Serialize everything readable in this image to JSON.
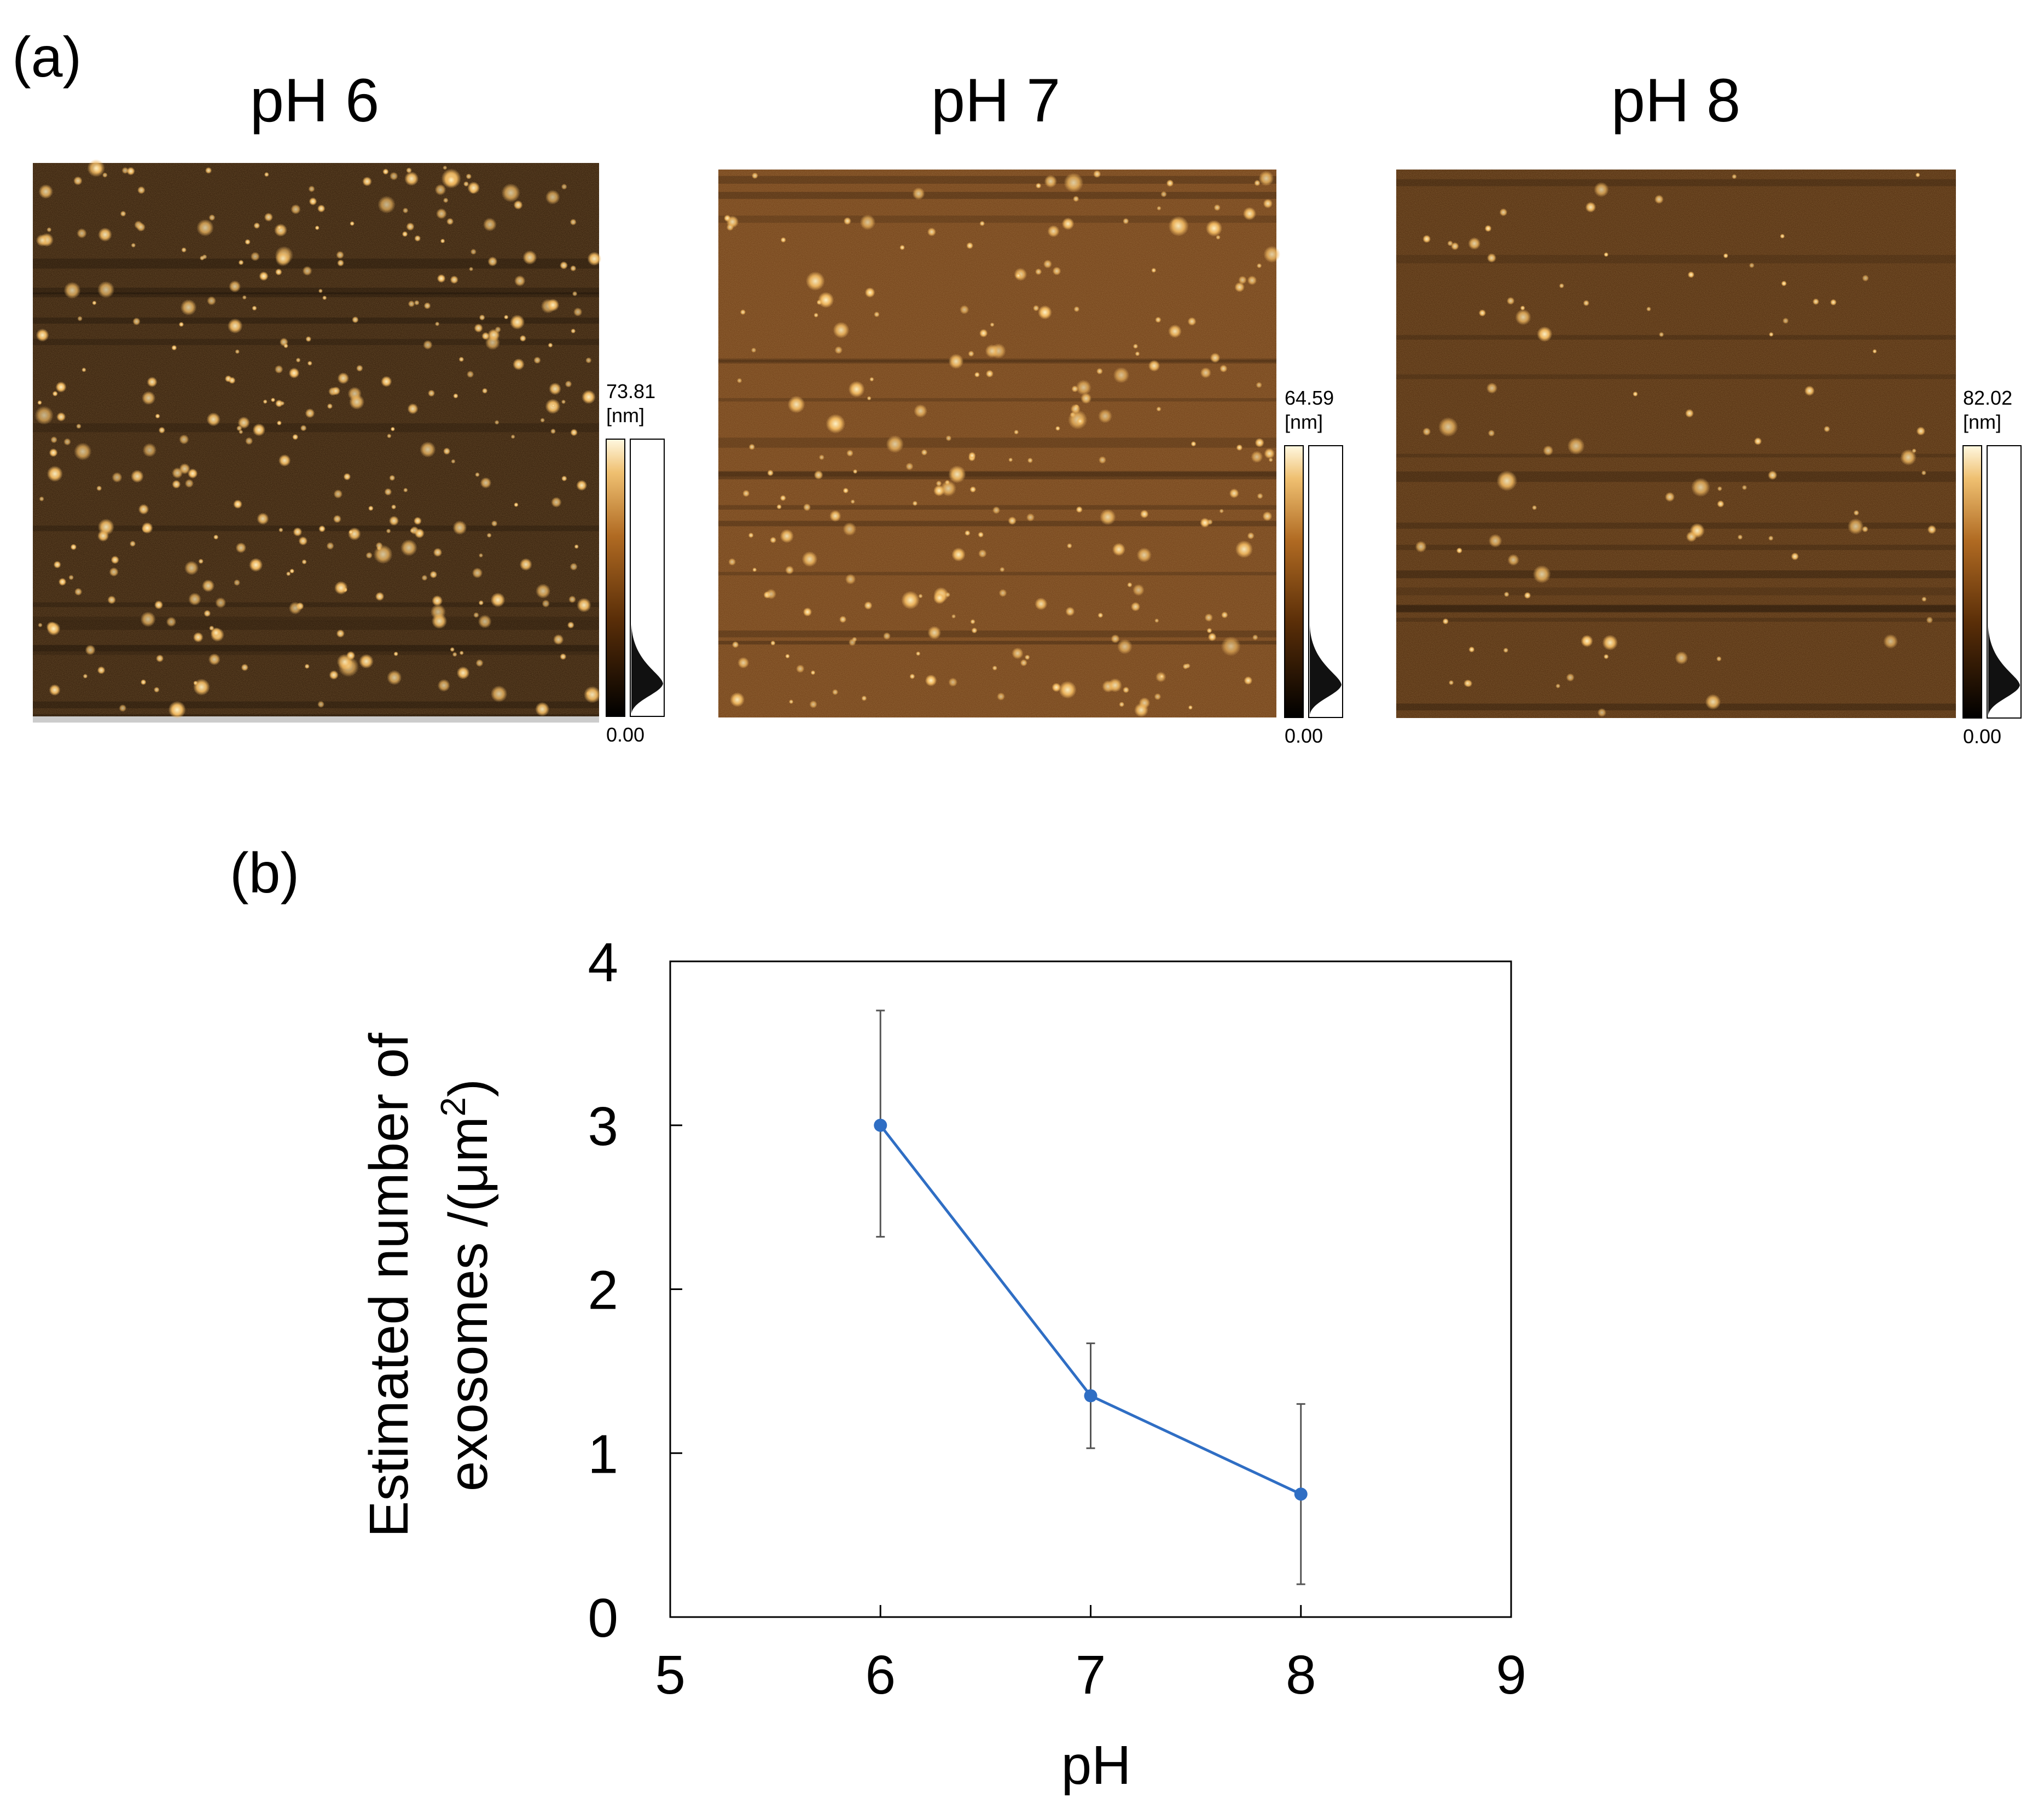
{
  "panel_a": {
    "label": "(a)",
    "images": [
      {
        "title": "pH 6",
        "scale_max": "73.81",
        "scale_unit": "[nm]",
        "scale_min": "0.00",
        "tone": "dark",
        "density": 340
      },
      {
        "title": "pH 7",
        "scale_max": "64.59",
        "scale_unit": "[nm]",
        "scale_min": "0.00",
        "tone": "medium",
        "density": 230
      },
      {
        "title": "pH 8",
        "scale_max": "82.02",
        "scale_unit": "[nm]",
        "scale_min": "0.00",
        "tone": "medium-dark",
        "density": 90
      }
    ],
    "colors": {
      "afm_dark": "#2a1503",
      "afm_medium": "#6b3a12",
      "afm_bright": "#f3c46a",
      "afm_white": "#fff6da"
    }
  },
  "panel_b": {
    "label": "(b)"
  },
  "chart_data": {
    "type": "line",
    "xlabel": "pH",
    "ylabel_line1": "Estimated number of",
    "ylabel_line2": "exosomes /(μm",
    "ylabel_sup": "2",
    "ylabel_tail": ")",
    "xlim": [
      5,
      9
    ],
    "ylim": [
      0,
      4
    ],
    "xticks": [
      5,
      6,
      7,
      8,
      9
    ],
    "yticks": [
      0,
      1,
      2,
      3,
      4
    ],
    "series": [
      {
        "x": [
          6,
          7,
          8
        ],
        "y": [
          3.0,
          1.35,
          0.75
        ],
        "err_low": [
          2.32,
          1.03,
          0.2
        ],
        "err_high": [
          3.7,
          1.67,
          1.3
        ],
        "color": "#2f6ec4",
        "error_color": "#555555"
      }
    ],
    "grid": false,
    "legend": "none"
  }
}
